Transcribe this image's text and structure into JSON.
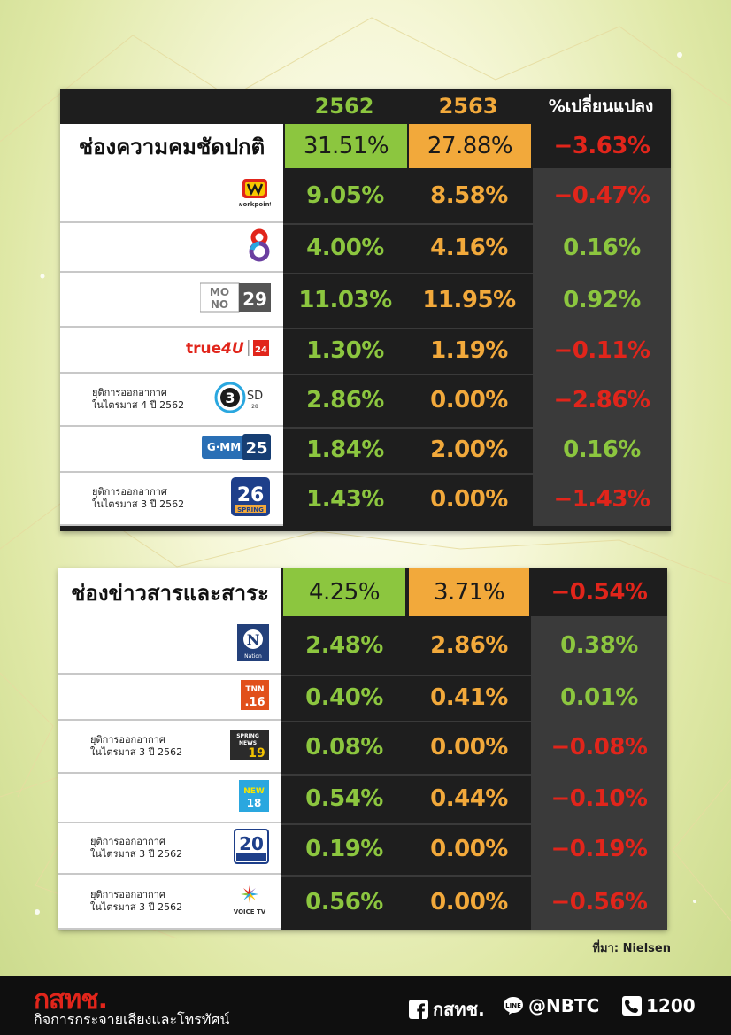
{
  "table1": {
    "headers": {
      "year1": "2562",
      "year2": "2563",
      "change": "%เปลี่ยนแปลง"
    },
    "summary": {
      "label": "ช่องความคมชัดปกติ",
      "v2562": "31.51%",
      "v2563": "27.88%",
      "change": "−3.63%"
    },
    "rows": [
      {
        "channel": "workpoint",
        "note1": "",
        "note2": "",
        "v2562": "9.05%",
        "v2563": "8.58%",
        "change": "−0.47%",
        "change_sign": "neg"
      },
      {
        "channel": "8",
        "note1": "",
        "note2": "",
        "v2562": "4.00%",
        "v2563": "4.16%",
        "change": "0.16%",
        "change_sign": "pos"
      },
      {
        "channel": "MONO 29",
        "note1": "",
        "note2": "",
        "v2562": "11.03%",
        "v2563": "11.95%",
        "change": "0.92%",
        "change_sign": "pos"
      },
      {
        "channel": "true4U 24",
        "note1": "",
        "note2": "",
        "v2562": "1.30%",
        "v2563": "1.19%",
        "change": "−0.11%",
        "change_sign": "neg"
      },
      {
        "channel": "3 SD 28",
        "note1": "ยุติการออกอากาศ",
        "note2": "ในไตรมาส 4 ปี 2562",
        "v2562": "2.86%",
        "v2563": "0.00%",
        "change": "−2.86%",
        "change_sign": "neg"
      },
      {
        "channel": "GMM 25",
        "note1": "",
        "note2": "",
        "v2562": "1.84%",
        "v2563": "2.00%",
        "change": "0.16%",
        "change_sign": "pos"
      },
      {
        "channel": "26 SPRING",
        "note1": "ยุติการออกอากาศ",
        "note2": "ในไตรมาส 3 ปี 2562",
        "v2562": "1.43%",
        "v2563": "0.00%",
        "change": "−1.43%",
        "change_sign": "neg"
      }
    ]
  },
  "table2": {
    "summary": {
      "label": "ช่องข่าวสารและสาระ",
      "v2562": "4.25%",
      "v2563": "3.71%",
      "change": "−0.54%"
    },
    "rows": [
      {
        "channel": "Nation",
        "note1": "",
        "note2": "",
        "v2562": "2.48%",
        "v2563": "2.86%",
        "change": "0.38%",
        "change_sign": "pos"
      },
      {
        "channel": "TNN 16",
        "note1": "",
        "note2": "",
        "v2562": "0.40%",
        "v2563": "0.41%",
        "change": "0.01%",
        "change_sign": "pos"
      },
      {
        "channel": "SPRING NEWS 19",
        "note1": "ยุติการออกอากาศ",
        "note2": "ในไตรมาส 3 ปี 2562",
        "v2562": "0.08%",
        "v2563": "0.00%",
        "change": "−0.08%",
        "change_sign": "neg"
      },
      {
        "channel": "NEW 18",
        "note1": "",
        "note2": "",
        "v2562": "0.54%",
        "v2563": "0.44%",
        "change": "−0.10%",
        "change_sign": "neg"
      },
      {
        "channel": "20 ไบรท์ทีวี",
        "note1": "ยุติการออกอากาศ",
        "note2": "ในไตรมาส 3 ปี 2562",
        "v2562": "0.19%",
        "v2563": "0.00%",
        "change": "−0.19%",
        "change_sign": "neg"
      },
      {
        "channel": "VOICE TV",
        "note1": "ยุติการออกอากาศ",
        "note2": "ในไตรมาส 3 ปี 2562",
        "v2562": "0.56%",
        "v2563": "0.00%",
        "change": "−0.56%",
        "change_sign": "neg"
      }
    ]
  },
  "source": "ที่มา: Nielsen",
  "footer": {
    "brand": "กสทช.",
    "brand_sub": "กิจการกระจายเสียงและโทรทัศน์",
    "facebook": "กสทช.",
    "line": "@NBTC",
    "phone": "1200"
  },
  "colors": {
    "green": "#8cc63f",
    "orange": "#f2a93b",
    "red": "#e1251b",
    "dark": "#1e1e1e"
  }
}
